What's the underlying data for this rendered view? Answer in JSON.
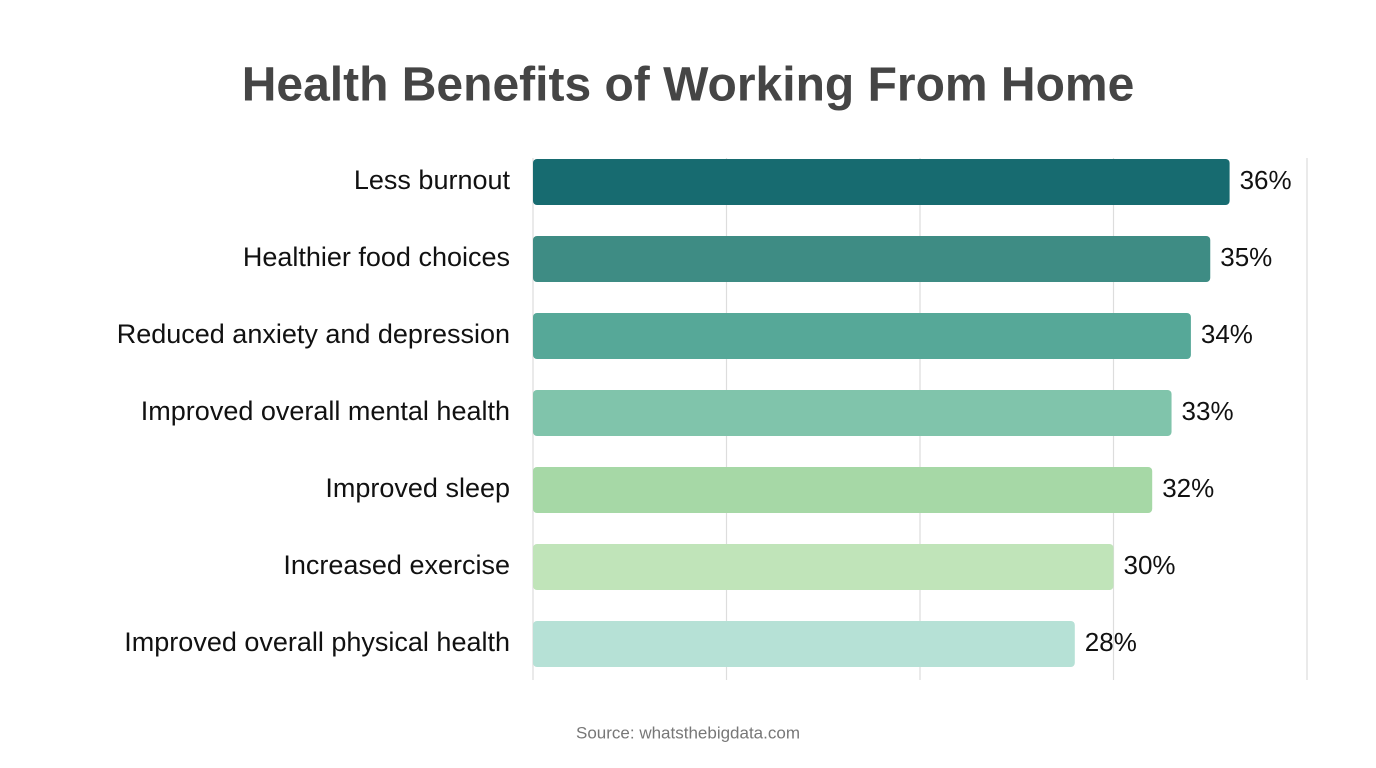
{
  "chart_data": {
    "type": "bar",
    "orientation": "horizontal",
    "title": "Health Benefits of Working From Home",
    "categories": [
      "Less burnout",
      "Healthier food choices",
      "Reduced anxiety and depression",
      "Improved overall mental health",
      "Improved sleep",
      "Increased exercise",
      "Improved overall physical health"
    ],
    "values": [
      36,
      35,
      34,
      33,
      32,
      30,
      28
    ],
    "value_labels": [
      "36%",
      "35%",
      "34%",
      "33%",
      "32%",
      "30%",
      "28%"
    ],
    "colors": [
      "#176b70",
      "#3e8c84",
      "#56a898",
      "#80c4ab",
      "#a6d8a6",
      "#c0e4b9",
      "#b6e1d6"
    ],
    "xlim": [
      0,
      40
    ],
    "xticks": [
      0,
      10,
      20,
      30,
      40
    ],
    "grid": true,
    "source": "Source: whatsthebigdata.com"
  }
}
